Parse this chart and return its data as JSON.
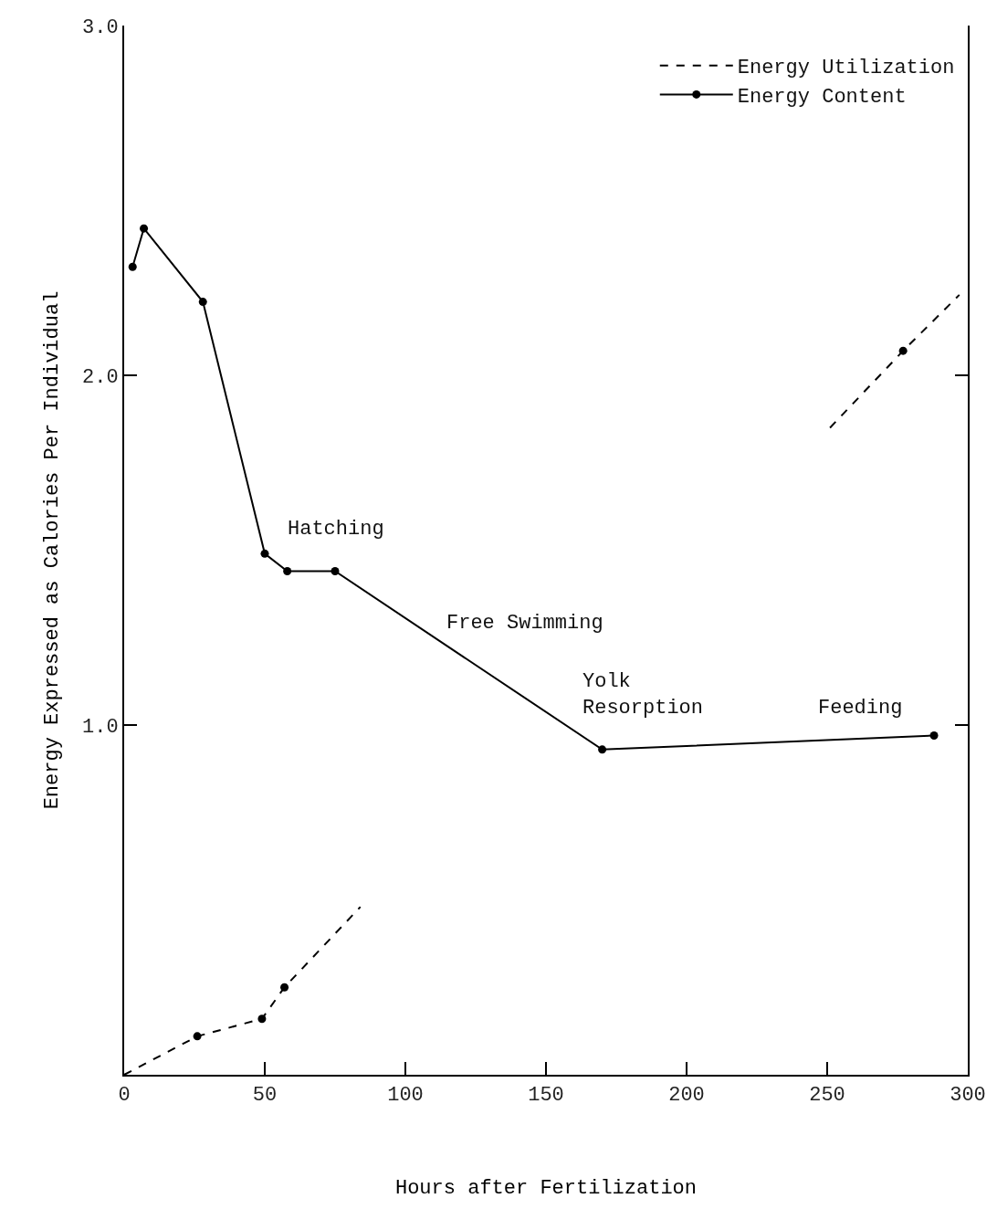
{
  "chart_data": {
    "type": "line",
    "xlabel": "Hours after Fertilization",
    "ylabel": "Energy Expressed as Calories Per Individual",
    "xlim": [
      0,
      300
    ],
    "ylim": [
      0,
      3.0
    ],
    "xticks": [
      0,
      50,
      100,
      150,
      200,
      250,
      300
    ],
    "yticks": [
      {
        "value": 1,
        "label": "1.0"
      },
      {
        "value": 2,
        "label": "2.0"
      },
      {
        "value": 3,
        "label": "3.0"
      }
    ],
    "legend": "top right",
    "series": [
      {
        "name": "Energy Utilization",
        "color": "#000000",
        "line_style": "dashed",
        "marker": "none",
        "x": [
          0,
          26,
          49,
          57,
          84,
          170,
          251,
          277,
          297
        ],
        "values": [
          0,
          0.11,
          0.16,
          0.25,
          0.48,
          null,
          1.85,
          2.07,
          2.23
        ]
      },
      {
        "name": "Energy Content",
        "color": "#000000",
        "line_style": "solid",
        "marker": "circle",
        "x": [
          3,
          7,
          28,
          50,
          58,
          75,
          170,
          288
        ],
        "values": [
          2.31,
          2.42,
          2.21,
          1.49,
          1.44,
          1.44,
          0.93,
          0.97
        ]
      },
      {
        "type": "scatter",
        "color": "#000000",
        "marker": "circle",
        "x": [
          26,
          49,
          57,
          277
        ],
        "values": [
          0.11,
          0.16,
          0.25,
          2.07
        ]
      }
    ],
    "annotations": [
      "Hatching",
      "Free Swimming",
      "Yolk\nResorption",
      "Feeding"
    ]
  }
}
